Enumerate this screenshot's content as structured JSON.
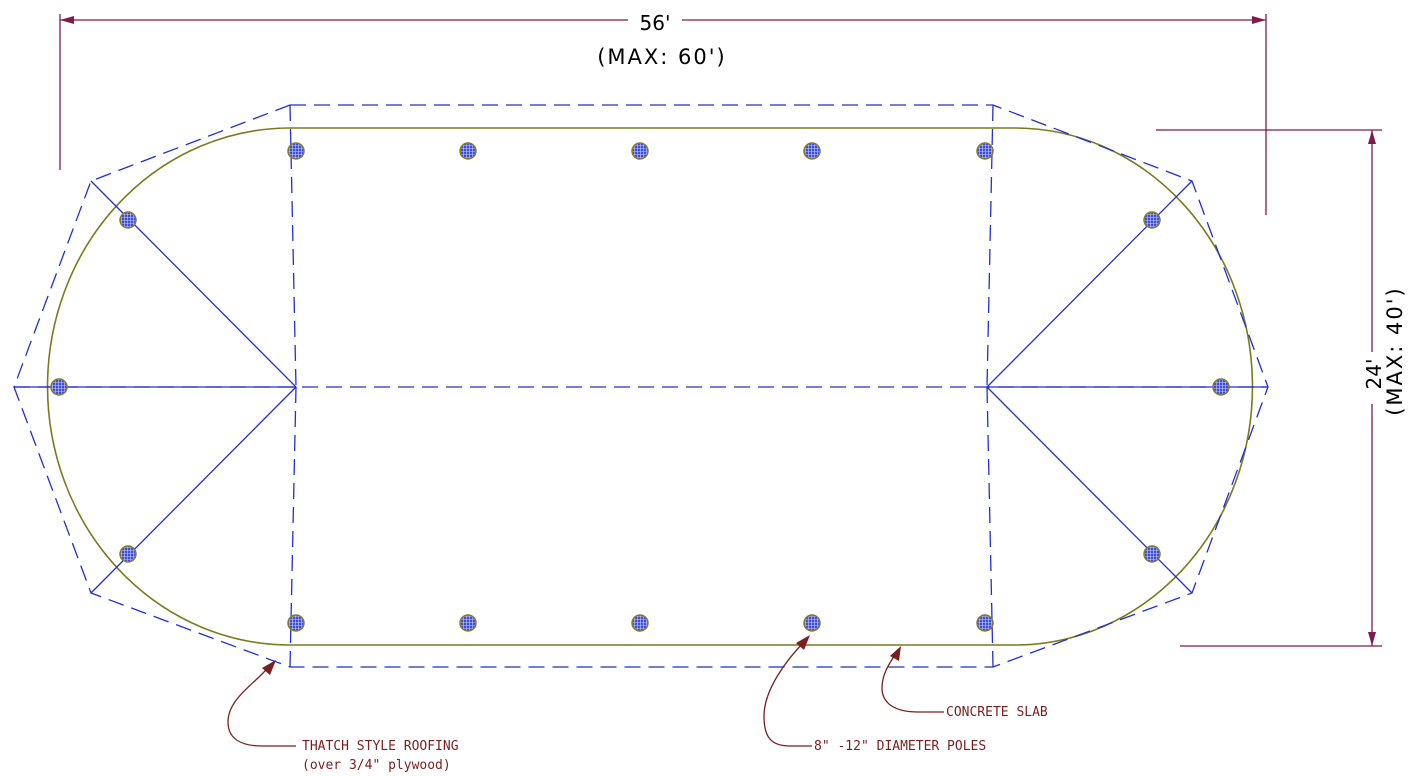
{
  "colors": {
    "background": "#ffffff",
    "dimension_line": "#7f1b4a",
    "roof_outline": "#1f2fd6",
    "slab_outline": "#7c7a1a",
    "pole_fill": "#3d4fd8",
    "pole_ring": "#8a7a2a",
    "leader_arrow": "#7a1e1e",
    "note_text": "#7a1e1e"
  },
  "dimensions": {
    "width_label": "56'",
    "width_max": "(MAX: 60')",
    "height_label": "24'",
    "height_max": "(MAX: 40')"
  },
  "notes": {
    "roofing_line1": "THATCH STYLE ROOFING",
    "roofing_line2": "(over 3/4\" plywood)",
    "poles": "8\" -12\" DIAMETER POLES",
    "slab": "CONCRETE SLAB"
  }
}
